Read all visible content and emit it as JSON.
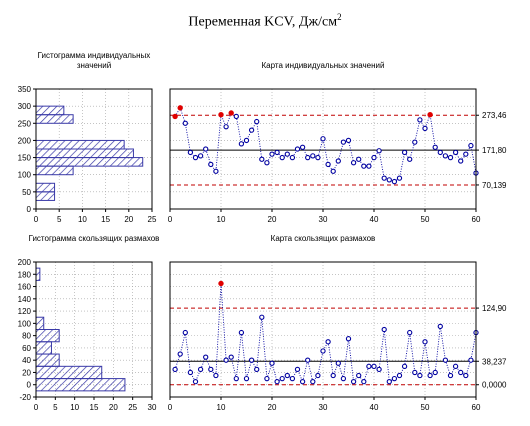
{
  "page": {
    "title": "Переменная KCV, Дж/см",
    "title_sup": "2"
  },
  "colors": {
    "histogram_fill": "#3a3aa8",
    "points": "#0000a0",
    "connector": "#0000a0",
    "out_of_control": "#e00000",
    "control_limit": "#c00000",
    "center_line": "#000000",
    "grid": "#a0a0a0"
  },
  "chart_data": [
    {
      "type": "bar",
      "orientation": "horizontal",
      "title": "Гистограмма индивидуальных значений",
      "title_lines": [
        "Гистограмма индивидуальных",
        "значений"
      ],
      "bin_edges": [
        25,
        50,
        75,
        100,
        125,
        150,
        175,
        200,
        225,
        250,
        275,
        300
      ],
      "counts": [
        4,
        4,
        0,
        8,
        23,
        21,
        19,
        0,
        0,
        8,
        6
      ],
      "xlim": [
        0,
        25
      ],
      "ylim": [
        0,
        350
      ],
      "x_ticks": [
        0,
        5,
        10,
        15,
        20,
        25
      ],
      "y_ticks": [
        0,
        50,
        100,
        150,
        200,
        250,
        300,
        350
      ],
      "grid": true
    },
    {
      "type": "line",
      "title": "Карта индивидуальных значений",
      "xlim": [
        0,
        60
      ],
      "ylim": [
        0,
        350
      ],
      "x_ticks": [
        0,
        10,
        20,
        30,
        40,
        50,
        60
      ],
      "center_line": 171.8,
      "ucl": 273.46,
      "lcl": 70.139,
      "right_labels": [
        "273,46",
        "171,80",
        "70,139"
      ],
      "grid": true,
      "values": [
        270,
        295,
        250,
        165,
        150,
        155,
        175,
        130,
        110,
        275,
        240,
        280,
        270,
        190,
        200,
        230,
        255,
        145,
        135,
        160,
        165,
        150,
        160,
        150,
        175,
        180,
        150,
        155,
        150,
        205,
        130,
        110,
        140,
        195,
        200,
        135,
        145,
        125,
        125,
        150,
        170,
        90,
        85,
        80,
        90,
        165,
        145,
        195,
        260,
        235,
        275,
        180,
        165,
        155,
        150,
        165,
        140,
        160,
        185,
        105
      ],
      "out_of_control": [
        1,
        2,
        10,
        12,
        51
      ]
    },
    {
      "type": "bar",
      "orientation": "horizontal",
      "title": "Гистограмма скользящих размахов",
      "title_lines": [
        "Гистограмма скользящих размахов"
      ],
      "bin_edges": [
        -10,
        10,
        30,
        50,
        70,
        90,
        110,
        130,
        150,
        170,
        190
      ],
      "counts": [
        23,
        17,
        6,
        4,
        6,
        2,
        0,
        0,
        0,
        1
      ],
      "xlim": [
        0,
        30
      ],
      "ylim": [
        -20,
        200
      ],
      "x_ticks": [
        0,
        5,
        10,
        15,
        20,
        25,
        30
      ],
      "y_ticks": [
        -20,
        0,
        20,
        40,
        60,
        80,
        100,
        120,
        140,
        160,
        180,
        200
      ],
      "grid": true
    },
    {
      "type": "line",
      "title": "Карта скользящих размахов",
      "xlim": [
        0,
        60
      ],
      "ylim": [
        -20,
        200
      ],
      "x_ticks": [
        0,
        10,
        20,
        30,
        40,
        50,
        60
      ],
      "center_line": 38.237,
      "ucl": 124.9,
      "lcl": 0,
      "right_labels": [
        "124,90",
        "38,237",
        "0,0000"
      ],
      "grid": true,
      "x": [
        1,
        2,
        3,
        4,
        5,
        6,
        7,
        8,
        9,
        10,
        11,
        12,
        13,
        14,
        15,
        16,
        17,
        18,
        19,
        20,
        21,
        22,
        23,
        24,
        25,
        26,
        27,
        28,
        29,
        30,
        31,
        32,
        33,
        34,
        35,
        36,
        37,
        38,
        39,
        40,
        41,
        42,
        43,
        44,
        45,
        46,
        47,
        48,
        49,
        50,
        51,
        52,
        53,
        54,
        55,
        56,
        57,
        58,
        59,
        60
      ],
      "values": [
        25,
        50,
        85,
        20,
        5,
        25,
        45,
        25,
        15,
        165,
        40,
        45,
        10,
        85,
        10,
        40,
        25,
        110,
        10,
        35,
        5,
        10,
        15,
        10,
        25,
        5,
        40,
        5,
        15,
        55,
        70,
        15,
        35,
        10,
        75,
        5,
        15,
        5,
        30,
        30,
        25,
        90,
        5,
        10,
        15,
        30,
        85,
        20,
        15,
        70,
        15,
        20,
        95,
        40,
        15,
        30,
        20,
        15,
        40,
        85
      ],
      "out_of_control": [
        10
      ]
    }
  ]
}
